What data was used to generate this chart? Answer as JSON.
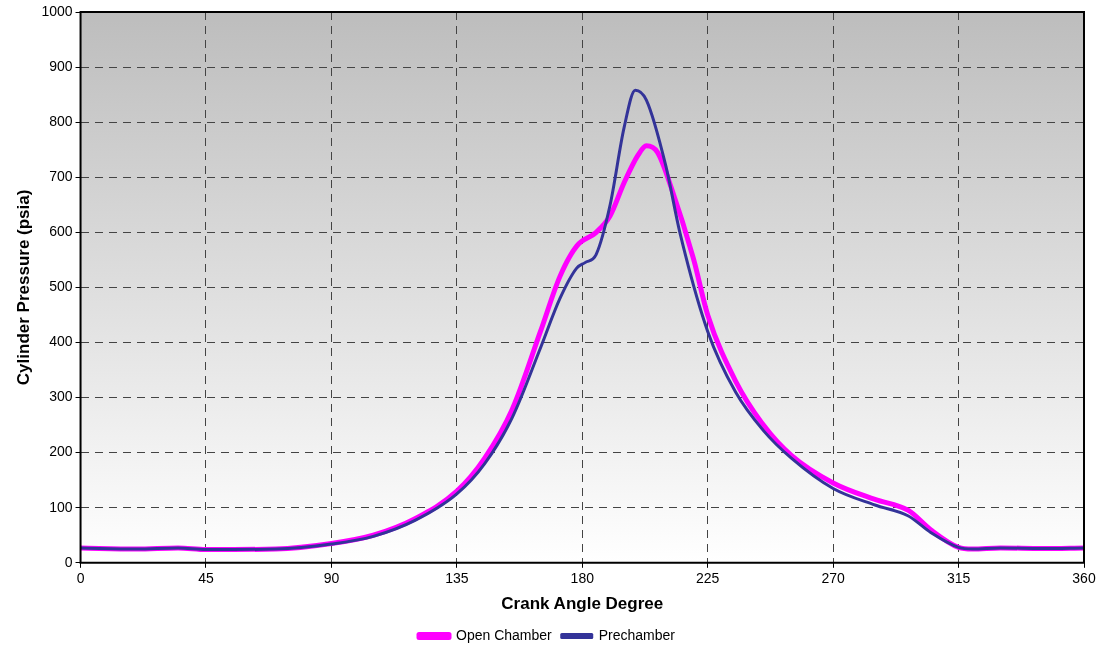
{
  "chart_data": {
    "type": "line",
    "xlabel": "Crank Angle Degree",
    "ylabel": "Cylinder Pressure (psia)",
    "xlim": [
      0,
      360
    ],
    "xticks": [
      0,
      45,
      90,
      135,
      180,
      225,
      270,
      315,
      360
    ],
    "ylim": [
      0,
      1000
    ],
    "yticks": [
      0,
      100,
      200,
      300,
      400,
      500,
      600,
      700,
      800,
      900,
      {
        "value": 1000,
        "label": "1000"
      }
    ],
    "grid": true,
    "legend": "bottom",
    "marker": "none",
    "line_style": "solid",
    "series": [
      {
        "name": "Open Chamber",
        "color": "#ff00ff",
        "x": [
          0,
          20,
          35,
          45,
          70,
          90,
          105,
          120,
          135,
          145,
          155,
          165,
          172,
          178,
          185,
          190,
          195,
          200,
          203,
          207,
          212,
          220,
          225,
          235,
          245,
          255,
          270,
          285,
          297,
          305,
          315,
          320,
          330,
          345,
          360
        ],
        "values": [
          27,
          25,
          27,
          24,
          25,
          35,
          50,
          80,
          130,
          190,
          280,
          420,
          520,
          575,
          600,
          630,
          690,
          740,
          757,
          745,
          680,
          550,
          450,
          330,
          250,
          195,
          145,
          115,
          95,
          60,
          28,
          25,
          27,
          26,
          27
        ]
      },
      {
        "name": "Prechamber",
        "color": "#333399",
        "x": [
          0,
          20,
          35,
          45,
          70,
          90,
          105,
          120,
          135,
          145,
          155,
          165,
          172,
          178,
          181,
          185,
          190,
          195,
          199,
          203,
          210,
          215,
          225,
          235,
          245,
          255,
          270,
          285,
          297,
          305,
          315,
          320,
          330,
          345,
          360
        ],
        "values": [
          27,
          25,
          27,
          24,
          25,
          34,
          48,
          77,
          125,
          180,
          265,
          390,
          480,
          535,
          545,
          560,
          650,
          790,
          858,
          840,
          720,
          600,
          420,
          310,
          240,
          190,
          135,
          105,
          85,
          55,
          28,
          25,
          27,
          26,
          27
        ]
      }
    ]
  }
}
